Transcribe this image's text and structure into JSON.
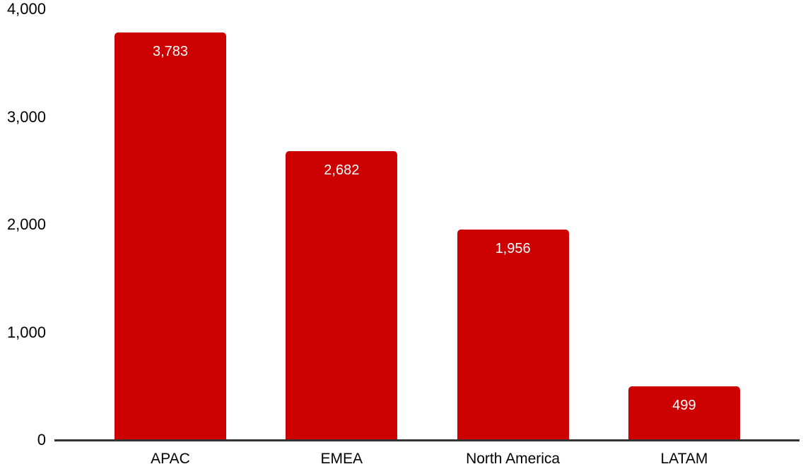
{
  "chart_data": {
    "type": "bar",
    "title": "",
    "xlabel": "",
    "ylabel": "",
    "categories": [
      "APAC",
      "EMEA",
      "North America",
      "LATAM"
    ],
    "values": [
      3783,
      2682,
      1956,
      499
    ],
    "value_labels": [
      "3,783",
      "2,682",
      "1,956",
      "499"
    ],
    "ylim": [
      0,
      4000
    ],
    "yticks": [
      {
        "value": 0,
        "label": "0"
      },
      {
        "value": 1000,
        "label": "1,000"
      },
      {
        "value": 2000,
        "label": "2,000"
      },
      {
        "value": 3000,
        "label": "3,000"
      },
      {
        "value": 4000,
        "label": "4,000"
      }
    ],
    "grid": false,
    "legend_position": "none",
    "colors": {
      "bar": "#cc0000",
      "value_label": "#ffffff",
      "axis_line": "#333333",
      "tick_label": "#000000",
      "background": "#ffffff"
    }
  }
}
